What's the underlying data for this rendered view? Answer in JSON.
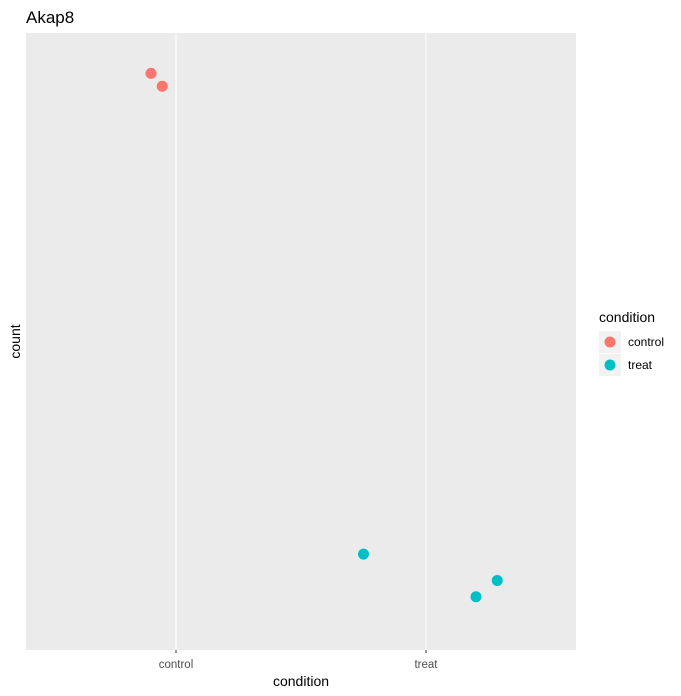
{
  "chart_data": {
    "type": "scatter",
    "title": "Akap8",
    "xlabel": "condition",
    "ylabel": "count",
    "categories": [
      "control",
      "treat"
    ],
    "y_tick_labels": [],
    "grid": true,
    "legend": {
      "title": "condition",
      "position": "right",
      "entries": [
        {
          "label": "control",
          "color": "#F8766D"
        },
        {
          "label": "treat",
          "color": "#00BFC4"
        }
      ]
    },
    "series": [
      {
        "name": "control",
        "color": "#F8766D",
        "points": [
          {
            "x": "control",
            "jitter": -0.1,
            "y": 0.978
          },
          {
            "x": "control",
            "jitter": -0.055,
            "y": 0.955
          }
        ]
      },
      {
        "name": "treat",
        "color": "#00BFC4",
        "points": [
          {
            "x": "treat",
            "jitter": -0.25,
            "y": 0.121
          },
          {
            "x": "treat",
            "jitter": 0.2,
            "y": 0.045
          },
          {
            "x": "treat",
            "jitter": 0.285,
            "y": 0.074
          }
        ]
      }
    ]
  }
}
